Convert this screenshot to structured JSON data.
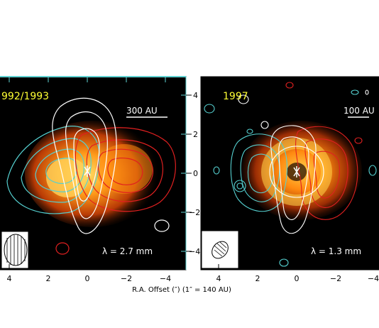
{
  "figure": {
    "x_axis_title": "R.A. Offset (″)   (1″ = 140 AU)",
    "panels": [
      {
        "id": "left",
        "epoch_label": "992/1993",
        "scale_bar_label": "300 AU",
        "wavelength_label": "λ = 2.7 mm",
        "x_tick_labels": [
          "4",
          "2",
          "0",
          "−2",
          "−4"
        ]
      },
      {
        "id": "right",
        "epoch_label": "1997",
        "scale_bar_label": "100 AU",
        "wavelength_label": "λ = 1.3 mm",
        "x_tick_labels": [
          "4",
          "2",
          "0",
          "−2",
          "−4"
        ],
        "y_tick_labels": [
          "4",
          "2",
          "0",
          "−2",
          "−4"
        ]
      }
    ],
    "colors": {
      "frame_cyan": "#5fd3d3",
      "contour_cyan": "#55d0d0",
      "contour_red": "#e02020",
      "contour_white": "#ffffff",
      "label_yellow": "#ffff33"
    }
  }
}
